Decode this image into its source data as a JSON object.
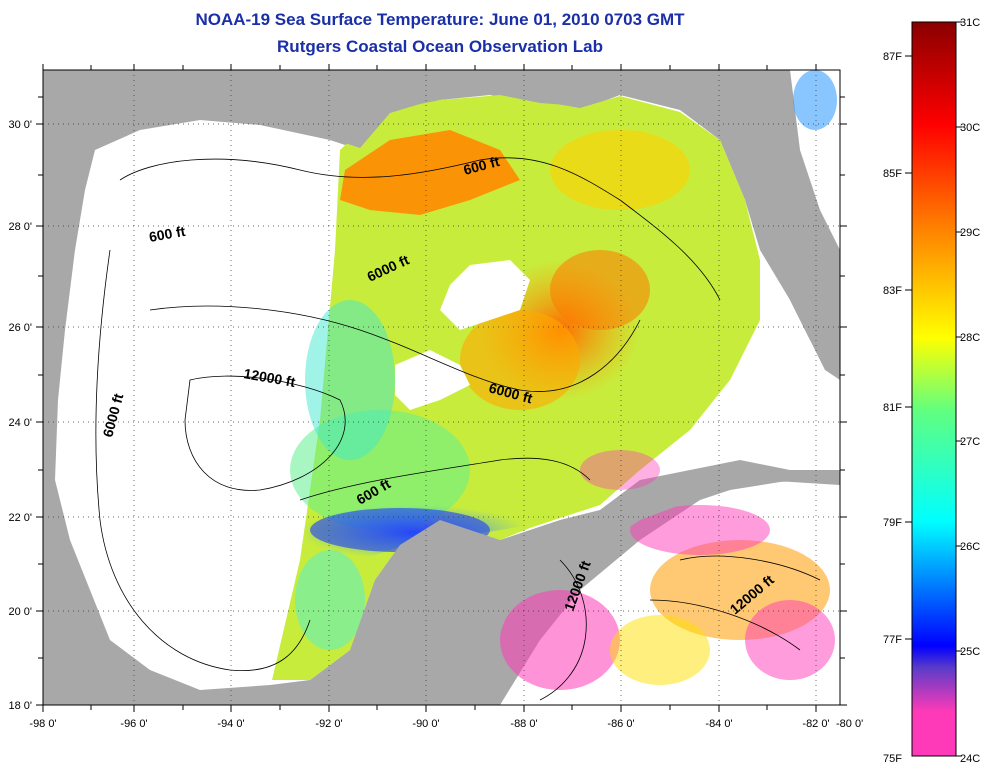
{
  "title": "NOAA-19 Sea Surface Temperature:  June 01, 2010 0703 GMT",
  "subtitle": "Rutgers Coastal Ocean Observation Lab",
  "map": {
    "lon_range": [
      -98,
      -80
    ],
    "lat_range": [
      18,
      31
    ],
    "lon_ticks": [
      "-98 0'",
      "-96 0'",
      "-94 0'",
      "-92 0'",
      "-90 0'",
      "-88 0'",
      "-86 0'",
      "-84 0'",
      "-82 0'",
      "-80 0'"
    ],
    "lat_ticks": [
      "18 0'",
      "20 0'",
      "22 0'",
      "24 0'",
      "26 0'",
      "28 0'",
      "30 0'"
    ],
    "contour_labels": [
      "600 ft",
      "600 ft",
      "6000 ft",
      "12000 ft",
      "6000 ft",
      "6000 ft",
      "600 ft",
      "12000 ft",
      "12000 ft"
    ],
    "colors": {
      "land": "#a8a8a8",
      "no_data": "#ffffff",
      "grid": "#333333"
    }
  },
  "colorbar": {
    "celsius_labels": [
      "31C",
      "30C",
      "29C",
      "28C",
      "27C",
      "26C",
      "25C",
      "24C"
    ],
    "fahrenheit_labels": [
      "87F",
      "85F",
      "83F",
      "81F",
      "79F",
      "77F",
      "75F"
    ],
    "celsius_range": [
      24,
      31
    ],
    "gradient": [
      "#ff3ab8",
      "#5a3cc8",
      "#0000ff",
      "#00ffff",
      "#ffff00",
      "#ff8000",
      "#ff0000",
      "#8a0000"
    ]
  }
}
